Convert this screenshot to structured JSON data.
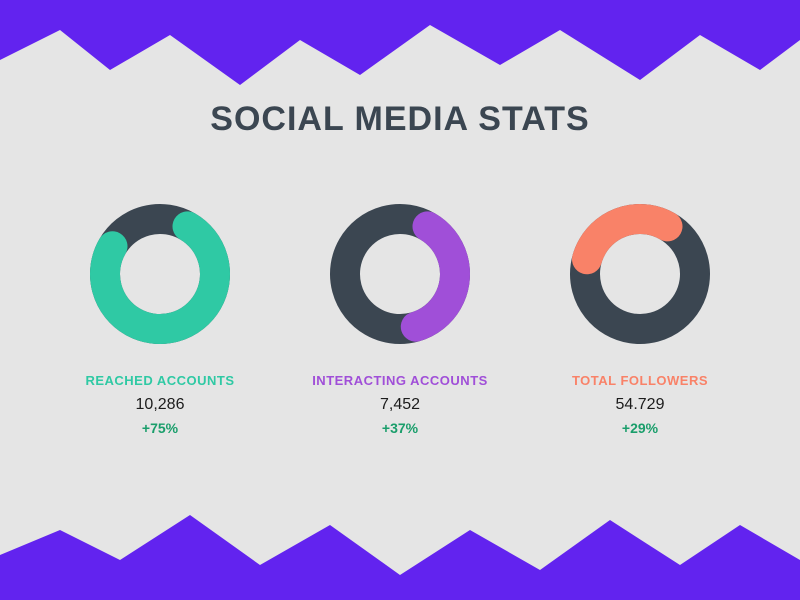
{
  "page": {
    "background_color": "#e5e5e5",
    "edge_color": "#6223ef",
    "title": "SOCIAL MEDIA STATS",
    "title_color": "#3b4651",
    "title_fontsize": 34
  },
  "donut": {
    "outer_radius": 70,
    "inner_radius": 40,
    "track_color": "#3b4651",
    "cap": "round",
    "start_angle_deg": -60
  },
  "metrics": [
    {
      "label": "REACHED ACCOUNTS",
      "label_color": "#2fc9a4",
      "value": "10,286",
      "change": "+75%",
      "percent": 75,
      "arc_color": "#2fc9a4",
      "direction": "cw"
    },
    {
      "label": "INTERACTING ACCOUNTS",
      "label_color": "#a04fd8",
      "value": "7,452",
      "change": "+37%",
      "percent": 37,
      "arc_color": "#a04fd8",
      "direction": "cw"
    },
    {
      "label": "TOTAL FOLLOWERS",
      "label_color": "#f98268",
      "value": "54.729",
      "change": "+29%",
      "percent": 29,
      "arc_color": "#f98268",
      "direction": "ccw"
    }
  ],
  "typography": {
    "label_fontsize": 13,
    "value_fontsize": 16,
    "value_color": "#1c1c1c",
    "change_fontsize": 14,
    "change_color": "#1a9e6b"
  }
}
